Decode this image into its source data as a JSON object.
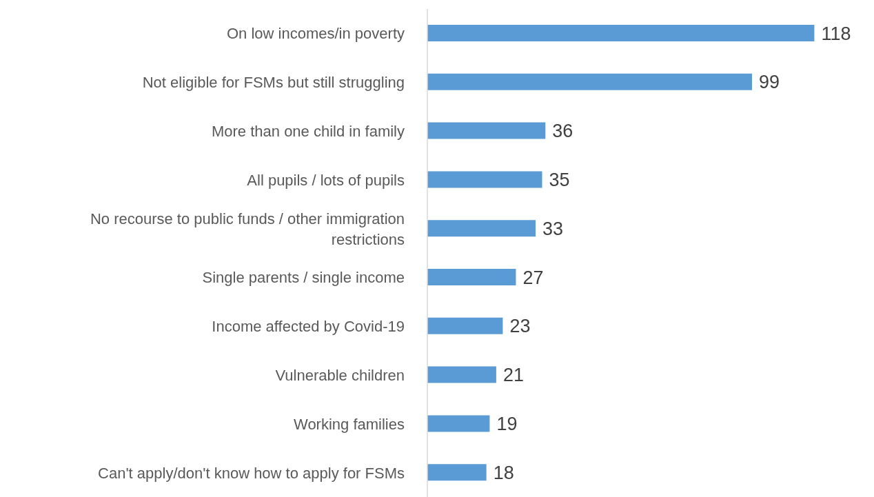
{
  "chart_data": {
    "type": "bar",
    "orientation": "horizontal",
    "categories": [
      "On low incomes/in poverty",
      "Not eligible for FSMs but still struggling",
      "More than one child in family",
      "All pupils / lots of pupils",
      "No recourse to public funds / other immigration restrictions",
      "Single parents / single income",
      "Income affected by Covid-19",
      "Vulnerable children",
      "Working families",
      "Can't apply/don't know how to apply for FSMs"
    ],
    "values": [
      118,
      99,
      36,
      35,
      33,
      27,
      23,
      21,
      19,
      18
    ],
    "color": "#5b9bd5",
    "data_labels": true
  }
}
